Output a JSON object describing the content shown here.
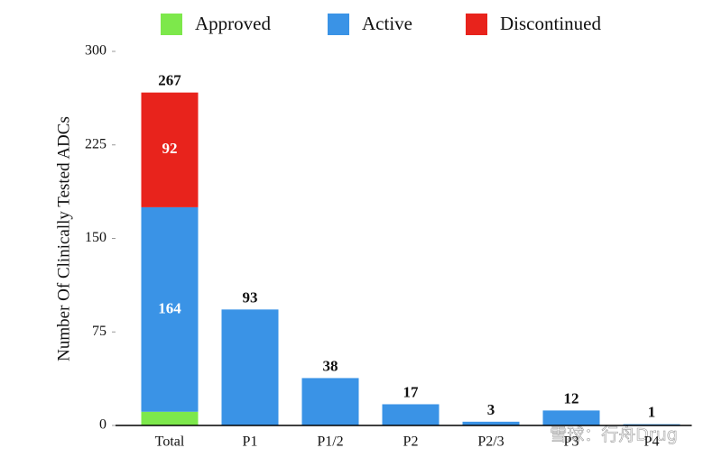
{
  "chart_data": {
    "type": "stacked-bar",
    "y_label": "Number Of Clinically Tested ADCs",
    "categories": [
      "Total",
      "P1",
      "P1/2",
      "P2",
      "P2/3",
      "P3",
      "P4"
    ],
    "series": [
      {
        "name": "Approved",
        "color": "#7de84b",
        "label_color": "#3ecf2a",
        "values": [
          11,
          null,
          null,
          null,
          null,
          null,
          null
        ]
      },
      {
        "name": "Active",
        "color": "#3a93e6",
        "label_color": "#ffffff",
        "values": [
          164,
          93,
          38,
          17,
          3,
          12,
          1
        ]
      },
      {
        "name": "Discontinued",
        "color": "#e8231c",
        "label_color": "#ffffff",
        "values": [
          92,
          null,
          null,
          null,
          null,
          null,
          null
        ]
      }
    ],
    "totals": [
      267,
      93,
      38,
      17,
      3,
      12,
      1
    ],
    "ylim": [
      0,
      300
    ],
    "yticks": [
      0,
      75,
      150,
      225,
      300
    ],
    "grid": false,
    "legend": "top",
    "watermark": "雪球：行舟Drug"
  }
}
